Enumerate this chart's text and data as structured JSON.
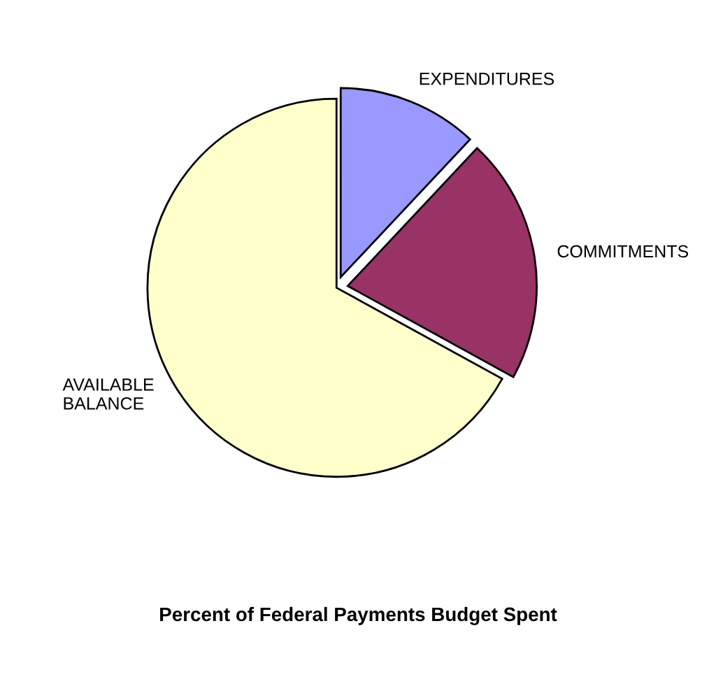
{
  "chart_data": {
    "type": "pie",
    "title": "Percent of Federal Payments Budget Spent",
    "categories": [
      "EXPENDITURES",
      "COMMITMENTS",
      "AVAILABLE\nBALANCE"
    ],
    "values": [
      12,
      21,
      67
    ],
    "colors": [
      "#9999ff",
      "#993366",
      "#ffffcc"
    ]
  }
}
